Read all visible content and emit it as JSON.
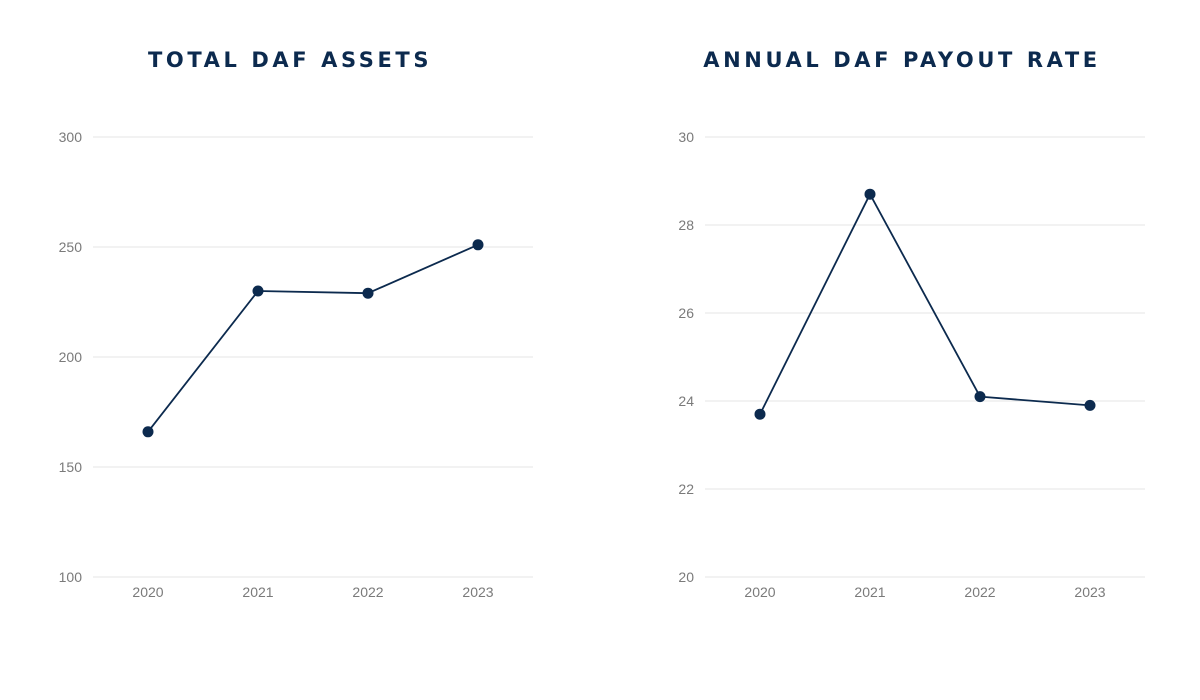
{
  "colors": {
    "series": "#0c2a4e",
    "title": "#0c2a4e",
    "grid": "#e6e6e6",
    "tick_text": "#7a7a7a",
    "background": "#ffffff"
  },
  "chart_data": [
    {
      "type": "line",
      "title": "TOTAL DAF ASSETS",
      "xlabel": "",
      "ylabel": "",
      "categories": [
        "2020",
        "2021",
        "2022",
        "2023"
      ],
      "series": [
        {
          "values": [
            166,
            230,
            229,
            251
          ]
        }
      ],
      "ylim": [
        100,
        300
      ],
      "yticks": [
        100,
        150,
        200,
        250,
        300
      ],
      "grid": true,
      "markers": true
    },
    {
      "type": "line",
      "title": "ANNUAL DAF PAYOUT RATE",
      "xlabel": "",
      "ylabel": "",
      "categories": [
        "2020",
        "2021",
        "2022",
        "2023"
      ],
      "series": [
        {
          "values": [
            23.7,
            28.7,
            24.1,
            23.9
          ]
        }
      ],
      "ylim": [
        20,
        30
      ],
      "yticks": [
        20,
        22,
        24,
        26,
        28,
        30
      ],
      "grid": true,
      "markers": true
    }
  ]
}
